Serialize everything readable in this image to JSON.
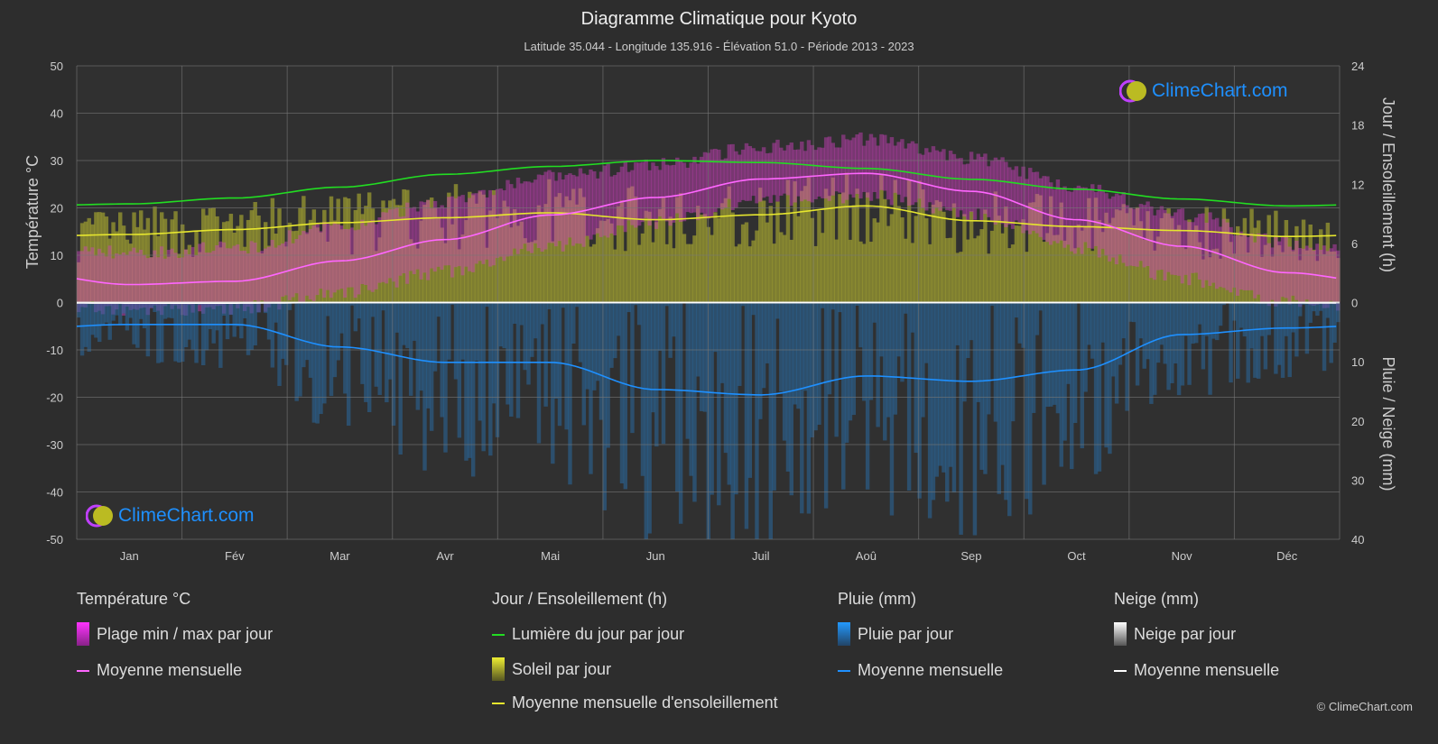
{
  "title": "Diagramme Climatique pour Kyoto",
  "subtitle": "Latitude 35.044 - Longitude 135.916 - Élévation 51.0 - Période 2013 - 2023",
  "logo_text": "ClimeChart.com",
  "copyright": "© ClimeChart.com",
  "chart_data": {
    "type": "line",
    "categories": [
      "Jan",
      "Fév",
      "Mar",
      "Avr",
      "Mai",
      "Jun",
      "Juil",
      "Aoû",
      "Sep",
      "Oct",
      "Nov",
      "Déc"
    ],
    "left_axis": {
      "label": "Température °C",
      "ylim": [
        -50,
        50
      ],
      "ticks": [
        "50",
        "40",
        "30",
        "20",
        "10",
        "0",
        "-10",
        "-20",
        "-30",
        "-40",
        "-50"
      ]
    },
    "right_axis_top": {
      "label": "Jour / Ensoleillement (h)",
      "ylim": [
        0,
        24
      ],
      "ticks": [
        "24",
        "18",
        "12",
        "6",
        "0"
      ]
    },
    "right_axis_bottom": {
      "label": "Pluie / Neige (mm)",
      "ylim": [
        0,
        40
      ],
      "ticks": [
        "10",
        "20",
        "30",
        "40"
      ]
    },
    "grid": true,
    "series": [
      {
        "name": "Moyenne mensuelle température",
        "unit": "°C",
        "color": "#ff66ff",
        "values": [
          3.8,
          4.5,
          8.8,
          13.3,
          18.5,
          22.2,
          26.1,
          27.3,
          23.5,
          17.5,
          11.9,
          6.3
        ]
      },
      {
        "name": "Plage min / max par jour (min)",
        "unit": "°C",
        "color": "#cc33cc",
        "values": [
          0,
          0.3,
          3.5,
          8,
          13.5,
          18.5,
          23,
          24,
          20,
          13,
          6.5,
          1.5
        ]
      },
      {
        "name": "Plage min / max par jour (max)",
        "unit": "°C",
        "color": "#cc33cc",
        "values": [
          9,
          10,
          14.5,
          20,
          25,
          27.5,
          31.5,
          33,
          29,
          23,
          17,
          11
        ]
      },
      {
        "name": "Lumière du jour par jour",
        "unit": "h",
        "color": "#22dd22",
        "values": [
          10.0,
          10.6,
          11.7,
          13.0,
          13.8,
          14.4,
          14.2,
          13.6,
          12.5,
          11.5,
          10.5,
          9.8
        ]
      },
      {
        "name": "Moyenne mensuelle d'ensoleillement",
        "unit": "h",
        "color": "#e6e62e",
        "values": [
          6.9,
          7.4,
          8.1,
          8.6,
          9.1,
          8.4,
          8.9,
          9.8,
          8.3,
          7.7,
          7.3,
          6.7
        ]
      },
      {
        "name": "Pluie moyenne mensuelle",
        "unit": "mm",
        "color": "#1e90ff",
        "values": [
          3.7,
          3.7,
          7.5,
          10.1,
          10.1,
          14.7,
          15.6,
          12.4,
          13.3,
          11.4,
          5.4,
          4.3
        ]
      },
      {
        "name": "Neige moyenne mensuelle",
        "unit": "mm",
        "color": "#ffffff",
        "values": [
          0.1,
          0.1,
          0,
          0,
          0,
          0,
          0,
          0,
          0,
          0,
          0,
          0.05
        ]
      }
    ]
  },
  "legend": {
    "temp": {
      "heading": "Température °C",
      "items": [
        "Plage min / max par jour",
        "Moyenne mensuelle"
      ]
    },
    "sun": {
      "heading": "Jour / Ensoleillement (h)",
      "items": [
        "Lumière du jour par jour",
        "Soleil par jour",
        "Moyenne mensuelle d'ensoleillement"
      ]
    },
    "rain": {
      "heading": "Pluie (mm)",
      "items": [
        "Pluie par jour",
        "Moyenne mensuelle"
      ]
    },
    "snow": {
      "heading": "Neige (mm)",
      "items": [
        "Neige par jour",
        "Moyenne mensuelle"
      ]
    }
  }
}
